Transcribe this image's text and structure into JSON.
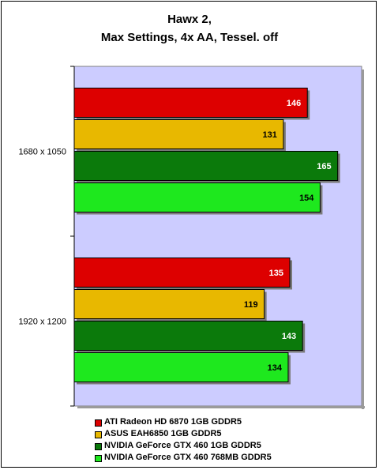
{
  "chart_data": {
    "type": "bar",
    "orientation": "horizontal",
    "title_line1": "Hawx 2,",
    "title_line2": "Max Settings, 4x AA, Tessel. off",
    "categories": [
      "1680 x 1050",
      "1920 x 1200"
    ],
    "series": [
      {
        "name": "ATI Radeon HD 6870 1GB GDDR5",
        "color": "#dd0000",
        "values": [
          146,
          135
        ]
      },
      {
        "name": "ASUS EAH6850 1GB GDDR5",
        "color": "#e8b800",
        "values": [
          131,
          119
        ]
      },
      {
        "name": "NVIDIA GeForce GTX 460 1GB GDDR5",
        "color": "#0b7a0b",
        "values": [
          165,
          143
        ]
      },
      {
        "name": "NVIDIA GeForce GTX 460 768MB GDDR5",
        "color": "#1ee81e",
        "values": [
          154,
          134
        ]
      }
    ],
    "label_colors": [
      "#ffffff",
      "#000000",
      "#ffffff",
      "#000000"
    ],
    "xlim": [
      0,
      180
    ],
    "plot_background": "#ccccff",
    "legend_position": "bottom"
  }
}
